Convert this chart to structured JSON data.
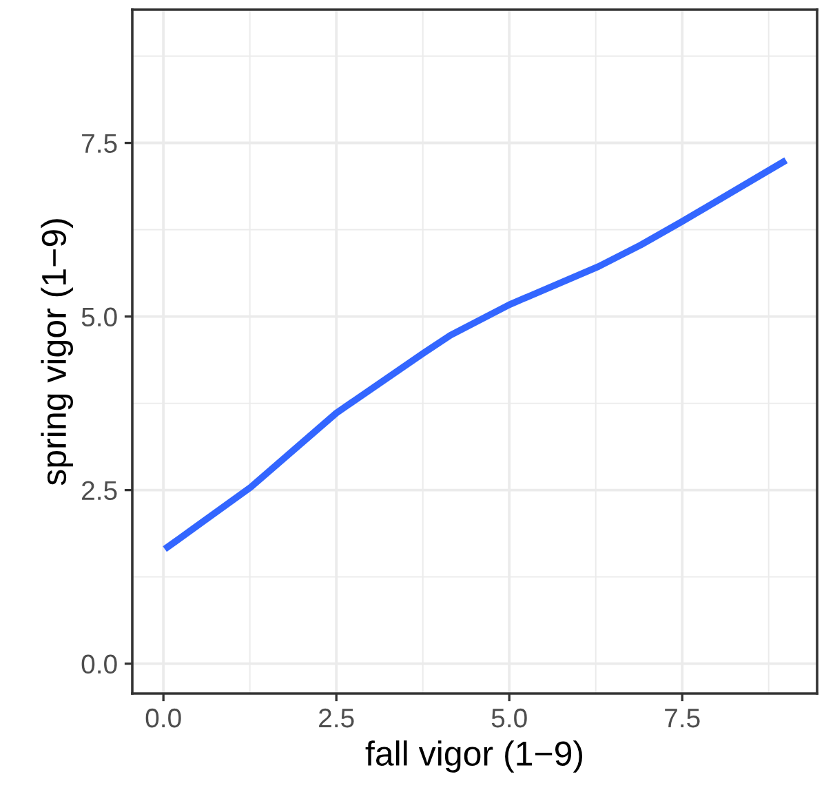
{
  "chart_data": {
    "type": "line",
    "xlabel": "fall vigor (1−9)",
    "ylabel": "spring vigor (1−9)",
    "series": [
      {
        "color": "#3366ff",
        "x": [
          0.02,
          1.26,
          2.5,
          3.77,
          4.15,
          5.0,
          6.29,
          6.9,
          7.5,
          9.0
        ],
        "values": [
          1.65,
          2.54,
          3.61,
          4.48,
          4.73,
          5.17,
          5.72,
          6.03,
          6.37,
          7.25
        ]
      }
    ],
    "xlim": [
      -0.45,
      9.45
    ],
    "ylim": [
      -0.43,
      9.42
    ],
    "xticks": [
      {
        "value": 0,
        "label": "0.0"
      },
      2.5,
      {
        "value": 5,
        "label": "5.0"
      },
      7.5
    ],
    "yticks": [
      {
        "value": 0,
        "label": "0.0"
      },
      2.5,
      {
        "value": 5,
        "label": "5.0"
      },
      7.5
    ],
    "grid": true,
    "marker": "none",
    "line_style": "solid"
  }
}
